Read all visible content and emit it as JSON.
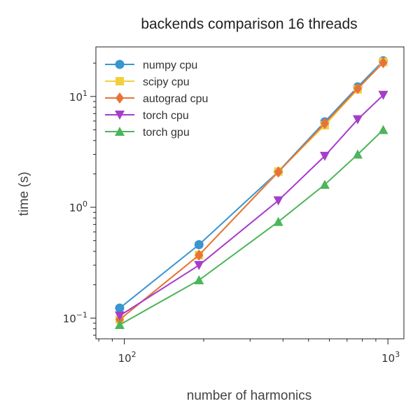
{
  "chart_data": {
    "type": "line",
    "title": "backends comparison 16 threads",
    "xlabel": "number of harmonics",
    "ylabel": "time (s)",
    "xscale": "log",
    "yscale": "log",
    "xlim": [
      78,
      1150
    ],
    "ylim": [
      0.065,
      28
    ],
    "x_ticks": [
      {
        "value": 100,
        "base": "10",
        "exp": "2"
      },
      {
        "value": 1000,
        "base": "10",
        "exp": "3"
      }
    ],
    "y_ticks": [
      {
        "value": 0.1,
        "base": "10",
        "exp": "−1"
      },
      {
        "value": 1,
        "base": "10",
        "exp": "0"
      },
      {
        "value": 10,
        "base": "10",
        "exp": "1"
      }
    ],
    "grid": false,
    "legend_position": "top-left",
    "x": [
      96,
      192,
      384,
      576,
      768,
      960
    ],
    "series": [
      {
        "name": "numpy cpu",
        "color": "#3a95d0",
        "marker": "circle",
        "values": [
          0.123,
          0.46,
          2.1,
          5.9,
          12.2,
          21.0
        ]
      },
      {
        "name": "scipy cpu",
        "color": "#f1d03c",
        "marker": "square",
        "values": [
          0.097,
          0.37,
          2.1,
          5.5,
          11.6,
          20.5
        ]
      },
      {
        "name": "autograd cpu",
        "color": "#e8733a",
        "marker": "diamond",
        "values": [
          0.097,
          0.37,
          2.08,
          5.7,
          11.8,
          20.2
        ]
      },
      {
        "name": "torch cpu",
        "color": "#a63dca",
        "marker": "triangle-down",
        "values": [
          0.105,
          0.3,
          1.15,
          2.9,
          6.2,
          10.3
        ]
      },
      {
        "name": "torch gpu",
        "color": "#4cb55a",
        "marker": "triangle-up",
        "values": [
          0.087,
          0.22,
          0.74,
          1.6,
          3.0,
          5.0
        ]
      }
    ]
  }
}
